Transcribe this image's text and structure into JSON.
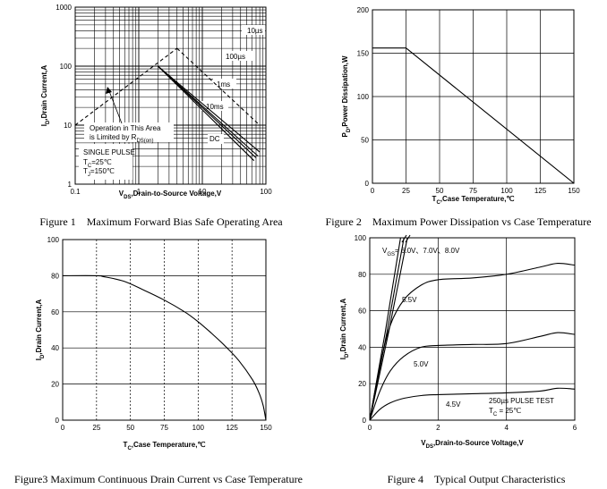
{
  "chart_data": [
    {
      "id": "fig1",
      "type": "line",
      "scale": "log-log",
      "caption": "Figure 1　Maximum Forward Bias Safe Operating Area",
      "xlabel_main": "V",
      "xlabel_sub": "DS",
      "xlabel_rest": ",Drain-to-Source Voltage,V",
      "ylabel_main": "I",
      "ylabel_sub": "D",
      "ylabel_rest": ",Drain Current,A",
      "xlim": [
        0.1,
        100
      ],
      "ylim": [
        1,
        1000
      ],
      "xticks": [
        "0.1",
        "1",
        "10",
        "100"
      ],
      "yticks": [
        "1",
        "10",
        "100",
        "1000"
      ],
      "series": [
        {
          "name": "Rds(on) limit",
          "style": "dashed",
          "points": [
            [
              0.1,
              10
            ],
            [
              4,
              200
            ]
          ]
        },
        {
          "name": "10µs",
          "style": "dashed",
          "points": [
            [
              4,
              200
            ],
            [
              80,
              10
            ]
          ]
        },
        {
          "name": "100µs",
          "style": "solid",
          "points": [
            [
              2,
              100
            ],
            [
              80,
              3.5
            ]
          ]
        },
        {
          "name": "1ms",
          "style": "solid",
          "points": [
            [
              2,
              100
            ],
            [
              75,
              3
            ]
          ]
        },
        {
          "name": "10ms",
          "style": "solid",
          "points": [
            [
              2,
              100
            ],
            [
              70,
              2.8
            ]
          ]
        },
        {
          "name": "DC",
          "style": "solid",
          "points": [
            [
              2,
              100
            ],
            [
              65,
              2.5
            ]
          ]
        }
      ],
      "labels": {
        "l10us": "10µs",
        "l100us": "100µs",
        "l1ms": "1ms",
        "l10ms": "10ms",
        "ldc": "DC",
        "op1": "Operation in This Area",
        "op2": "is Limited by R",
        "op2sub": "DS(on)",
        "sp": "SINGLE PULSE",
        "tc": "T",
        "tcsub": "C",
        "tcval": "=25℃",
        "tj": "T",
        "tjsub": "J",
        "tjval": "=150℃"
      }
    },
    {
      "id": "fig2",
      "type": "line",
      "caption": "Figure 2　Maximum Power Dissipation vs Case Temperature",
      "xlabel_main": "T",
      "xlabel_sub": "C",
      "xlabel_rest": ",Case Temperature,℃",
      "ylabel_main": "P",
      "ylabel_sub": "D",
      "ylabel_rest": ",Power Dissipation,W",
      "xlim": [
        0,
        150
      ],
      "ylim": [
        0,
        200
      ],
      "xticks": [
        "0",
        "25",
        "50",
        "75",
        "100",
        "125",
        "150"
      ],
      "yticks": [
        "0",
        "50",
        "100",
        "150",
        "200"
      ],
      "series": [
        {
          "name": "PD",
          "x": [
            0,
            25,
            150
          ],
          "y": [
            156,
            156,
            0
          ]
        }
      ]
    },
    {
      "id": "fig3",
      "type": "line",
      "caption": "Figure3 Maximum Continuous Drain Current vs Case Temperature",
      "xlabel_main": "T",
      "xlabel_sub": "C",
      "xlabel_rest": ",Case Temperature,℃",
      "ylabel_main": "I",
      "ylabel_sub": "D",
      "ylabel_rest": ",Drain Current,A",
      "xlim": [
        0,
        150
      ],
      "ylim": [
        0,
        100
      ],
      "xticks": [
        "0",
        "25",
        "50",
        "75",
        "100",
        "125",
        "150"
      ],
      "yticks": [
        "0",
        "20",
        "40",
        "60",
        "80",
        "100"
      ],
      "series": [
        {
          "name": "ID",
          "x": [
            0,
            25,
            30,
            45,
            60,
            75,
            90,
            100,
            110,
            120,
            130,
            140,
            145,
            148,
            150
          ],
          "y": [
            80,
            80,
            79.5,
            77,
            72,
            66.5,
            60,
            54.5,
            48,
            41,
            33,
            22.5,
            15,
            8,
            0
          ]
        }
      ]
    },
    {
      "id": "fig4",
      "type": "line",
      "caption": "Figure 4　Typical Output Characteristics",
      "xlabel_main": "V",
      "xlabel_sub": "DS",
      "xlabel_rest": ",Drain-to-Source Voltage,V",
      "ylabel_main": "I",
      "ylabel_sub": "D",
      "ylabel_rest": ",Drain Current,A",
      "xlim": [
        0,
        6
      ],
      "ylim": [
        0,
        100
      ],
      "xticks": [
        "0",
        "2",
        "4",
        "6"
      ],
      "yticks": [
        "0",
        "20",
        "40",
        "60",
        "80",
        "100"
      ],
      "series": [
        {
          "name": "VGS=6.0V",
          "x": [
            0,
            0.45,
            0.9
          ],
          "y": [
            0,
            48,
            100
          ]
        },
        {
          "name": "VGS=7.0V",
          "x": [
            0,
            0.5,
            1.0
          ],
          "y": [
            0,
            48,
            100
          ]
        },
        {
          "name": "VGS=8.0V",
          "x": [
            0,
            0.55,
            1.1
          ],
          "y": [
            0,
            48,
            100
          ]
        },
        {
          "name": "VGS=5.5V",
          "x": [
            0,
            0.3,
            0.6,
            1.0,
            1.5,
            2.0,
            3.0,
            4.0,
            5.0,
            5.5,
            6.0
          ],
          "y": [
            0,
            30,
            52,
            66,
            74,
            77,
            78,
            80,
            84,
            86,
            85
          ]
        },
        {
          "name": "VGS=5.0V",
          "x": [
            0,
            0.3,
            0.6,
            1.0,
            1.5,
            2.0,
            3.0,
            4.0,
            5.0,
            5.5,
            6.0
          ],
          "y": [
            0,
            16,
            27,
            35,
            40,
            41,
            41.5,
            42,
            46,
            48,
            47
          ]
        },
        {
          "name": "VGS=4.5V",
          "x": [
            0,
            0.3,
            0.6,
            1.0,
            1.5,
            2.0,
            3.0,
            4.0,
            5.0,
            5.5,
            6.0
          ],
          "y": [
            0,
            6,
            9.5,
            12,
            13.5,
            14,
            14.5,
            15,
            16,
            17.5,
            17
          ]
        }
      ],
      "labels": {
        "vgs": "V",
        "vgssub": "GS",
        "vgsval": "= 6.0V、7.0V、8.0V",
        "l55": "5.5V",
        "l50": "5.0V",
        "l45": "4.5V",
        "pulse": "250µs PULSE TEST",
        "tc": "T",
        "tcsub": "C",
        "tcval": " = 25℃"
      }
    }
  ]
}
